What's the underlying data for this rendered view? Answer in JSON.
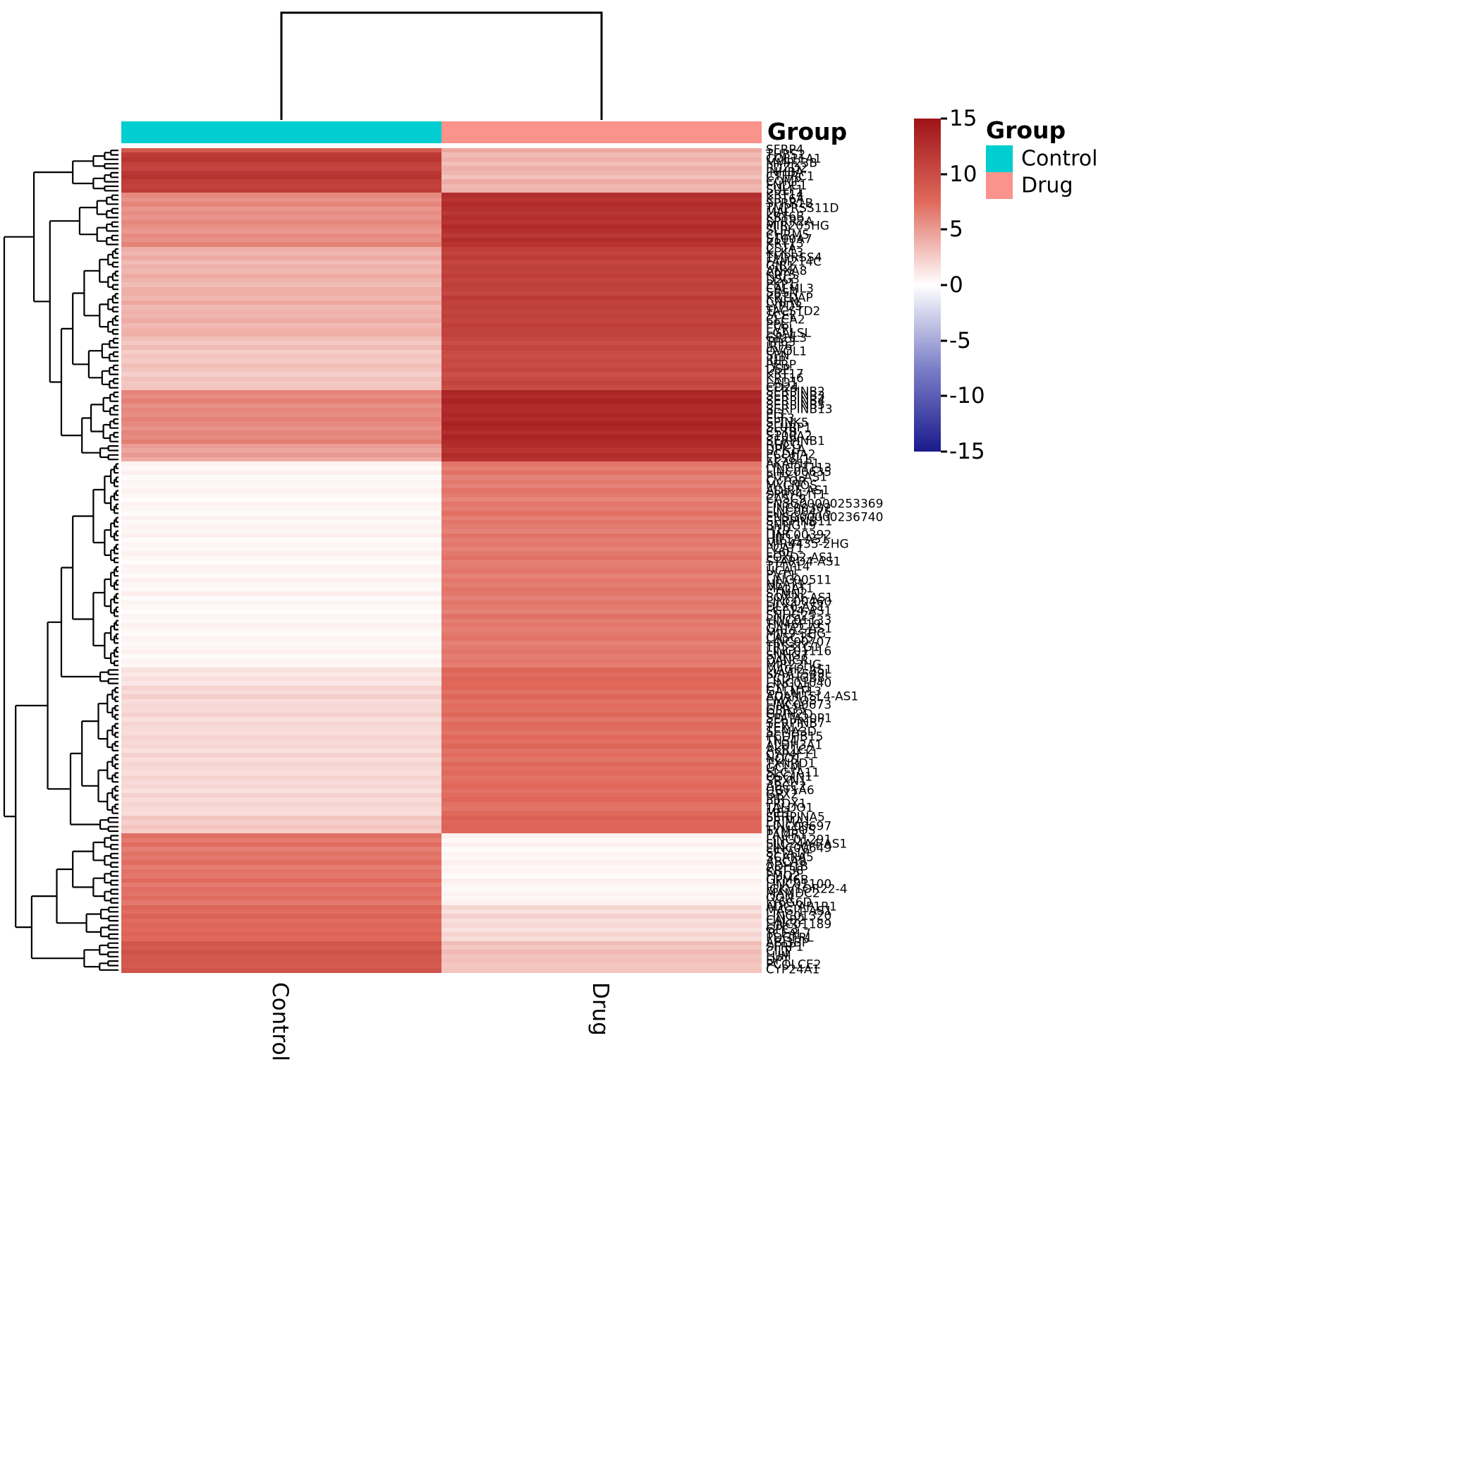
{
  "chart_data": {
    "type": "heatmap",
    "title": "",
    "columns": [
      "Control",
      "Drug"
    ],
    "value_limits": [
      -15,
      15
    ],
    "column_annotation": {
      "title": "Group",
      "assignment": {
        "Control": "Control",
        "Drug": "Drug"
      },
      "colors": {
        "Control": "#00CED1",
        "Drug": "#F9938B"
      }
    },
    "colorbar": {
      "ticks": [
        15,
        10,
        5,
        0,
        -5,
        -10,
        -15
      ],
      "limits": [
        -15,
        15
      ],
      "colors": {
        "max": "#9E1418",
        "mid_pos": "#E0695C",
        "zero": "#FFFFFF",
        "mid_neg": "#7B7FC7",
        "min": "#1A1A8C"
      }
    },
    "legend": {
      "title": "Group",
      "entries": [
        {
          "label": "Control",
          "color": "#00CED1"
        },
        {
          "label": "Drug",
          "color": "#F9938B"
        }
      ]
    },
    "rows": [
      [
        "SFRP4",
        9.0,
        4.4
      ],
      [
        "THBS2",
        11.6,
        3.4
      ],
      [
        "COL11A1",
        12.1,
        3.9
      ],
      [
        "MMP23B",
        11.0,
        3.2
      ],
      [
        "PDZD2",
        10.7,
        4.0
      ],
      [
        "INHBA",
        11.8,
        3.7
      ],
      [
        "CTHRC1",
        12.3,
        3.1
      ],
      [
        "COMP",
        11.3,
        4.2
      ],
      [
        "FNDC1",
        10.9,
        3.5
      ],
      [
        "SULF1",
        11.5,
        3.8
      ],
      [
        "KRT14",
        5.9,
        12.7
      ],
      [
        "KRT6A",
        5.4,
        12.1
      ],
      [
        "SPRR1B",
        6.1,
        12.9
      ],
      [
        "TMPRSS11D",
        5.2,
        12.4
      ],
      [
        "MAL",
        5.7,
        11.9
      ],
      [
        "KRT6B",
        5.3,
        12.6
      ],
      [
        "SPRR2A",
        6.0,
        12.2
      ],
      [
        "MIR205HG",
        5.6,
        13.0
      ],
      [
        "SLPI",
        5.1,
        12.5
      ],
      [
        "CHRM5",
        5.8,
        11.8
      ],
      [
        "S100A7",
        5.5,
        12.8
      ],
      [
        "KRT13",
        6.2,
        12.3
      ],
      [
        "CSTA",
        4.1,
        11.3
      ],
      [
        "KLK13",
        3.6,
        10.8
      ],
      [
        "TMPRSS4",
        4.3,
        11.5
      ],
      [
        "FAM214C",
        3.4,
        10.6
      ],
      [
        "GJB1",
        3.9,
        11.1
      ],
      [
        "ANXA8",
        3.5,
        10.9
      ],
      [
        "KRT5",
        4.2,
        11.4
      ],
      [
        "DSG3",
        3.8,
        10.7
      ],
      [
        "PKP1",
        3.3,
        11.2
      ],
      [
        "CALML3",
        4.0,
        11.0
      ],
      [
        "SBSN",
        4.1,
        10.5
      ],
      [
        "KRTDAP",
        3.6,
        11.6
      ],
      [
        "CNFN",
        4.4,
        10.9
      ],
      [
        "LYPD3",
        3.5,
        11.2
      ],
      [
        "TACSTD2",
        3.9,
        10.8
      ],
      [
        "SCEL",
        3.7,
        11.1
      ],
      [
        "CLCA2",
        4.2,
        10.6
      ],
      [
        "PPL",
        3.4,
        11.3
      ],
      [
        "EVPL",
        3.8,
        10.9
      ],
      [
        "LGALSL",
        4.0,
        11.0
      ],
      [
        "GRHL3",
        3.2,
        10.5
      ],
      [
        "TP63",
        2.7,
        9.9
      ],
      [
        "IRF6",
        3.4,
        10.7
      ],
      [
        "OVOL1",
        2.5,
        10.1
      ],
      [
        "SFN",
        3.0,
        9.8
      ],
      [
        "JUP",
        2.6,
        10.4
      ],
      [
        "PERP",
        3.3,
        10.0
      ],
      [
        "DSP",
        2.9,
        10.6
      ],
      [
        "KRT17",
        2.4,
        9.7
      ],
      [
        "KRT16",
        3.1,
        10.3
      ],
      [
        "LAD1",
        2.8,
        10.8
      ],
      [
        "CD24",
        3.0,
        10.1
      ],
      [
        "SERPINB2",
        6.2,
        13.5
      ],
      [
        "SERPINB3",
        5.7,
        12.9
      ],
      [
        "SERPINB4",
        6.4,
        13.7
      ],
      [
        "SERPINB5",
        5.5,
        13.1
      ],
      [
        "SERPINB13",
        6.0,
        12.8
      ],
      [
        "PI3",
        5.6,
        13.4
      ],
      [
        "ELF3",
        6.3,
        13.0
      ],
      [
        "SPINK5",
        5.9,
        13.8
      ],
      [
        "SLURP1",
        5.4,
        13.3
      ],
      [
        "CSTB",
        6.1,
        12.7
      ],
      [
        "S100A2",
        5.8,
        13.6
      ],
      [
        "SERPINB1",
        6.5,
        13.1
      ],
      [
        "RHCG",
        4.9,
        12.7
      ],
      [
        "UPK1A",
        4.4,
        12.1
      ],
      [
        "PCDHA2",
        5.1,
        12.9
      ],
      [
        "EPS8L1",
        4.2,
        12.4
      ],
      [
        "AKAP1P1",
        0.6,
        6.9
      ],
      [
        "LINC01113",
        0.3,
        6.4
      ],
      [
        "LINC00635",
        0.8,
        7.1
      ],
      [
        "PITX1-AS1",
        0.2,
        6.2
      ],
      [
        "CYTOR",
        0.5,
        6.7
      ],
      [
        "MYCNOS",
        0.3,
        6.3
      ],
      [
        "ADIRF-AS1",
        0.7,
        7.0
      ],
      [
        "SPRY4-IT1",
        0.4,
        6.6
      ],
      [
        "CASC9",
        0.1,
        6.1
      ],
      [
        "ENSG00000253369",
        0.6,
        6.8
      ],
      [
        "LINC00302",
        0.5,
        6.5
      ],
      [
        "LINC00475",
        0.2,
        7.2
      ],
      [
        "ENSG00000236740",
        0.7,
        6.4
      ],
      [
        "SERPINB11",
        0.3,
        6.9
      ],
      [
        "SNHG19",
        0.6,
        6.6
      ],
      [
        "H19",
        0.4,
        6.2
      ],
      [
        "LINC00392",
        0.8,
        7.0
      ],
      [
        "HIF1A-AS1",
        0.2,
        6.5
      ],
      [
        "MIR4435-2HG",
        0.5,
        6.8
      ],
      [
        "PCAT1",
        0.3,
        6.3
      ],
      [
        "LY6E",
        0.7,
        6.7
      ],
      [
        "FOXD2-AS1",
        0.4,
        7.1
      ],
      [
        "STARD4-AS1",
        0.1,
        6.4
      ],
      [
        "TTTY14",
        0.6,
        6.6
      ],
      [
        "UCA1",
        0.5,
        6.9
      ],
      [
        "PVT1",
        0.2,
        6.2
      ],
      [
        "LINC00511",
        0.7,
        6.8
      ],
      [
        "NEAT1",
        0.4,
        6.5
      ],
      [
        "MALAT1",
        0.3,
        7.0
      ],
      [
        "STMN2",
        0.8,
        6.7
      ],
      [
        "SOX21-AS1",
        0.2,
        6.3
      ],
      [
        "LINC00460",
        0.6,
        6.9
      ],
      [
        "DLX6-AS1",
        0.4,
        6.6
      ],
      [
        "FGF14-AS1",
        0.1,
        6.2
      ],
      [
        "SNHG25",
        0.5,
        7.1
      ],
      [
        "LINC01133",
        0.3,
        6.5
      ],
      [
        "TM4SF19",
        0.7,
        6.8
      ],
      [
        "GATA2-AS1",
        0.4,
        6.4
      ],
      [
        "MIR9-3HG",
        0.2,
        6.7
      ],
      [
        "CASC15",
        0.6,
        7.0
      ],
      [
        "LINC00707",
        0.3,
        6.3
      ],
      [
        "TP53TG1",
        0.5,
        6.6
      ],
      [
        "LINC01116",
        0.8,
        6.9
      ],
      [
        "SNHG7",
        0.2,
        6.5
      ],
      [
        "DANCR",
        0.6,
        6.8
      ],
      [
        "MIR22HG",
        0.4,
        6.4
      ],
      [
        "MAGI2-AS1",
        1.5,
        7.8
      ],
      [
        "KIAA1549L",
        1.1,
        7.4
      ],
      [
        "PCDHGB8",
        1.6,
        7.9
      ],
      [
        "LINC01040",
        1.2,
        7.5
      ],
      [
        "CYP1A1",
        2.2,
        7.6
      ],
      [
        "GALNT13",
        1.7,
        7.1
      ],
      [
        "ADAMTSL4-AS1",
        2.4,
        7.8
      ],
      [
        "EMX2OS",
        1.6,
        7.0
      ],
      [
        "LINC00673",
        2.0,
        7.4
      ],
      [
        "GPR35",
        1.8,
        7.2
      ],
      [
        "GRIN2D",
        2.3,
        7.7
      ],
      [
        "SPATA20P1",
        1.5,
        6.9
      ],
      [
        "SERPINB7",
        2.1,
        7.5
      ],
      [
        "TEX12",
        1.9,
        7.3
      ],
      [
        "SEMA3D",
        1.6,
        7.0
      ],
      [
        "PCDHB15",
        2.2,
        7.6
      ],
      [
        "TNS4",
        1.8,
        7.2
      ],
      [
        "ALDH3A1",
        2.0,
        7.8
      ],
      [
        "AKR1C2",
        1.5,
        7.1
      ],
      [
        "CYP4F11",
        2.3,
        7.4
      ],
      [
        "NQO1",
        1.7,
        6.9
      ],
      [
        "TXNRD1",
        2.1,
        7.7
      ],
      [
        "GCLM",
        1.9,
        7.2
      ],
      [
        "SLC7A11",
        1.6,
        7.5
      ],
      [
        "OSGIN1",
        2.2,
        7.0
      ],
      [
        "SRXN1",
        1.8,
        7.3
      ],
      [
        "ABCC2",
        2.0,
        7.6
      ],
      [
        "UGT1A6",
        1.5,
        7.1
      ],
      [
        "GPX2",
        2.3,
        7.4
      ],
      [
        "PIR",
        1.7,
        7.7
      ],
      [
        "PRDX1",
        2.1,
        7.2
      ],
      [
        "TALDO1",
        1.9,
        6.9
      ],
      [
        "ME1",
        1.6,
        7.5
      ],
      [
        "SERPINA5",
        2.9,
        8.2
      ],
      [
        "PRIMA1",
        2.4,
        7.7
      ],
      [
        "LINC00697",
        3.0,
        8.0
      ],
      [
        "TYMSOS",
        2.5,
        7.8
      ],
      [
        "PAMR1",
        7.2,
        0.7
      ],
      [
        "LINC01291",
        6.6,
        0.3
      ],
      [
        "SLC24A4-AS1",
        7.4,
        0.8
      ],
      [
        "LINC00649",
        6.4,
        0.2
      ],
      [
        "SFTA1P",
        7.0,
        0.5
      ],
      [
        "SCARA5",
        6.7,
        0.3
      ],
      [
        "ABCA8",
        7.3,
        0.7
      ],
      [
        "ADH1B",
        6.5,
        0.4
      ],
      [
        "KRT38",
        7.1,
        0.6
      ],
      [
        "FMO2",
        6.8,
        0.2
      ],
      [
        "GPM6B",
        7.5,
        0.8
      ],
      [
        "LINC01100",
        6.6,
        0.5
      ],
      [
        "IGKV1OR22-4",
        7.2,
        0.3
      ],
      [
        "MAMDC2",
        6.9,
        0.6
      ],
      [
        "OGN",
        7.4,
        0.4
      ],
      [
        "LY6G6D",
        6.7,
        0.7
      ],
      [
        "ADCYAP1R1",
        7.9,
        2.1
      ],
      [
        "MAGI1-AS1",
        7.3,
        1.5
      ],
      [
        "LINC01320",
        8.1,
        2.3
      ],
      [
        "CALB2",
        7.4,
        1.6
      ],
      [
        "LINC01189",
        7.8,
        2.0
      ],
      [
        "GPC3",
        7.5,
        1.4
      ],
      [
        "TCEAL7",
        8.0,
        2.2
      ],
      [
        "PDGFRL",
        7.6,
        1.7
      ],
      [
        "ABI3BP",
        9.3,
        3.3
      ],
      [
        "SFRP1",
        8.7,
        2.7
      ],
      [
        "CILP",
        9.5,
        3.5
      ],
      [
        "LUM",
        8.9,
        2.9
      ],
      [
        "DPT",
        9.2,
        3.2
      ],
      [
        "PCOLCE2",
        8.8,
        2.8
      ],
      [
        "CYP24A1",
        9.4,
        3.0
      ]
    ]
  }
}
